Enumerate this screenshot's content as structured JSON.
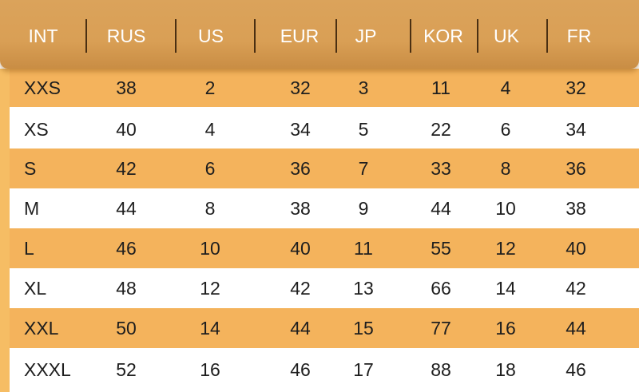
{
  "headers": [
    "INT",
    "RUS",
    "US",
    "EUR",
    "JP",
    "KOR",
    "UK",
    "FR"
  ],
  "rows": [
    [
      "XXS",
      "38",
      "2",
      "32",
      "3",
      "11",
      "4",
      "32"
    ],
    [
      "XS",
      "40",
      "4",
      "34",
      "5",
      "22",
      "6",
      "34"
    ],
    [
      "S",
      "42",
      "6",
      "36",
      "7",
      "33",
      "8",
      "36"
    ],
    [
      "M",
      "44",
      "8",
      "38",
      "9",
      "44",
      "10",
      "38"
    ],
    [
      "L",
      "46",
      "10",
      "40",
      "11",
      "55",
      "12",
      "40"
    ],
    [
      "XL",
      "48",
      "12",
      "42",
      "13",
      "66",
      "14",
      "42"
    ],
    [
      "XXL",
      "50",
      "14",
      "44",
      "15",
      "77",
      "16",
      "44"
    ],
    [
      "XXXL",
      "52",
      "16",
      "46",
      "17",
      "88",
      "18",
      "46"
    ]
  ],
  "colors": {
    "header": "#d99f55",
    "row_alt": "#f4b35c",
    "row_plain": "#ffffff",
    "text": "#1e1e1e",
    "header_text": "#ffffff"
  }
}
